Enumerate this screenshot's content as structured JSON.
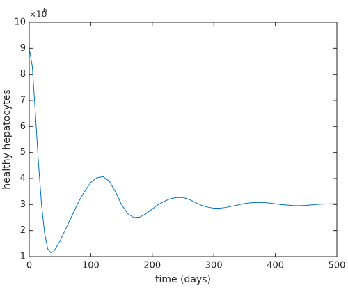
{
  "chart_data": {
    "type": "line",
    "xlabel": "time (days)",
    "ylabel": "healthy hepatocytes",
    "y_scale_label": "×10",
    "y_scale_exponent": "6",
    "x": [
      0,
      5,
      10,
      15,
      20,
      25,
      30,
      35,
      40,
      50,
      60,
      70,
      80,
      90,
      100,
      110,
      120,
      130,
      140,
      150,
      160,
      170,
      180,
      190,
      200,
      210,
      220,
      230,
      240,
      250,
      260,
      270,
      280,
      290,
      300,
      310,
      320,
      330,
      340,
      350,
      360,
      370,
      380,
      390,
      400,
      410,
      420,
      430,
      440,
      450,
      460,
      470,
      480,
      490,
      500
    ],
    "series": [
      {
        "color": "#0072bd",
        "values": [
          9.0,
          8.3,
          6.5,
          4.6,
          3.0,
          1.9,
          1.3,
          1.15,
          1.2,
          1.6,
          2.1,
          2.6,
          3.1,
          3.5,
          3.85,
          4.03,
          4.07,
          3.9,
          3.5,
          3.0,
          2.65,
          2.5,
          2.52,
          2.65,
          2.83,
          3.0,
          3.13,
          3.23,
          3.27,
          3.27,
          3.2,
          3.08,
          2.97,
          2.9,
          2.86,
          2.86,
          2.89,
          2.94,
          2.99,
          3.04,
          3.07,
          3.08,
          3.08,
          3.06,
          3.03,
          3.0,
          2.98,
          2.96,
          2.96,
          2.97,
          2.99,
          3.01,
          3.02,
          3.03,
          3.03
        ]
      }
    ],
    "xlim": [
      0,
      500
    ],
    "xticks": [
      0,
      100,
      200,
      300,
      400,
      500
    ],
    "ylim": [
      1,
      10
    ],
    "yticks": [
      1,
      2,
      3,
      4,
      5,
      6,
      7,
      8,
      9,
      10
    ]
  }
}
